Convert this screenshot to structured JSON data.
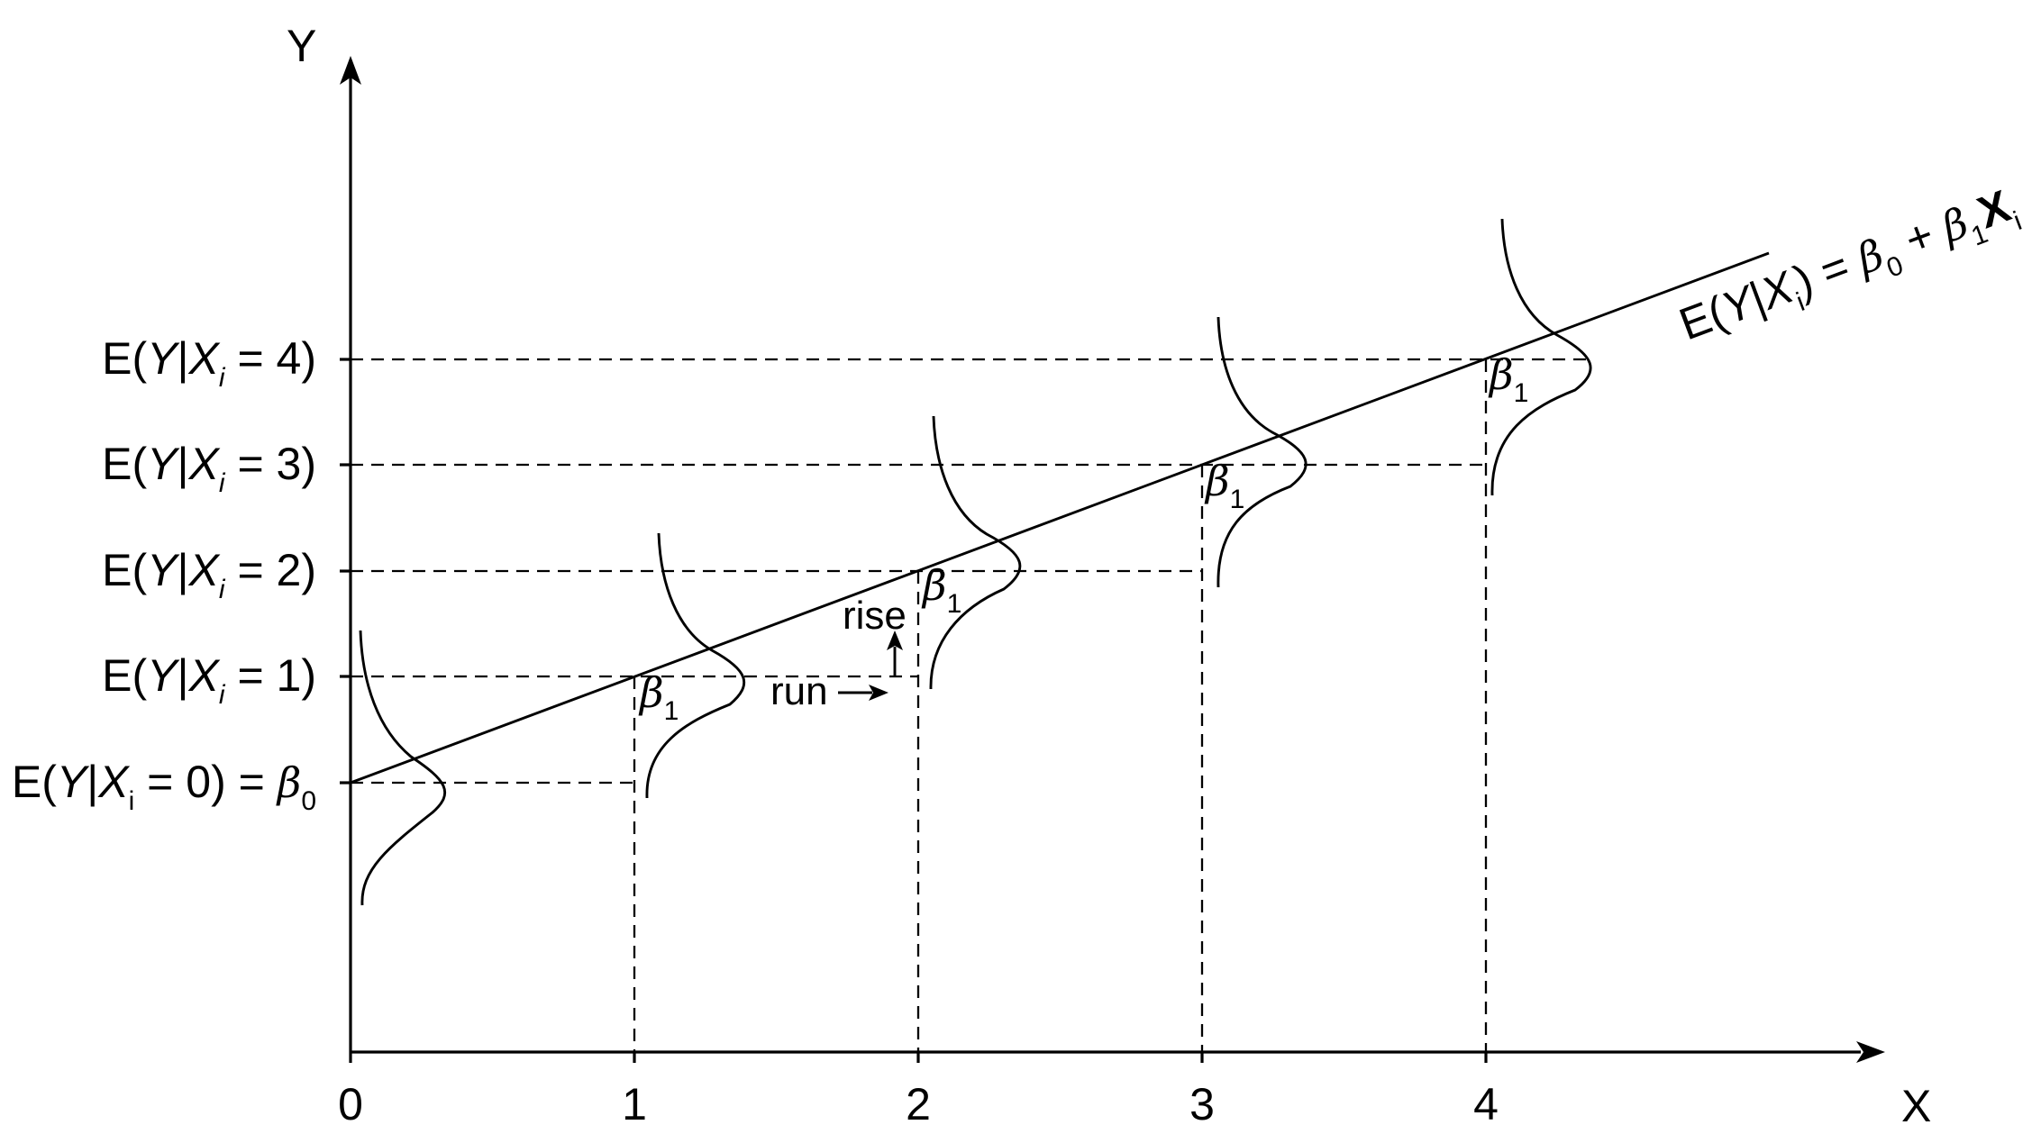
{
  "axes": {
    "y_label": "Y",
    "x_label": "X",
    "x_ticks": [
      "0",
      "1",
      "2",
      "3",
      "4"
    ]
  },
  "y_levels": [
    {
      "prefix": "E(",
      "var_y": "Y",
      "bar": "|",
      "var_x": "X",
      "sub": "i",
      "value": " = 0)",
      "tail": " = ",
      "tail_sym": "β",
      "tail_sub": "0"
    },
    {
      "prefix": "E(",
      "var_y": "Y",
      "bar": "|",
      "var_x": "X",
      "sub": "i",
      "value": " = 1)"
    },
    {
      "prefix": "E(",
      "var_y": "Y",
      "bar": "|",
      "var_x": "X",
      "sub": "i",
      "value": " = 2)"
    },
    {
      "prefix": "E(",
      "var_y": "Y",
      "bar": "|",
      "var_x": "X",
      "sub": "i",
      "value": " = 3)"
    },
    {
      "prefix": "E(",
      "var_y": "Y",
      "bar": "|",
      "var_x": "X",
      "sub": "i",
      "value": " = 4)"
    }
  ],
  "slope_labels": {
    "symbol": "β",
    "sub": "1"
  },
  "annotations": {
    "rise": "rise",
    "run": "run"
  },
  "regression_equation": {
    "lhs_open": "E(",
    "lhs_y": "Y",
    "lhs_bar": "|",
    "lhs_x": "X",
    "lhs_sub": "i",
    "lhs_close": ")",
    "equals": " = ",
    "beta0": "β",
    "beta0_sub": "0",
    "plus": " + ",
    "beta1": "β",
    "beta1_sub": "1",
    "rhs_x": "X",
    "rhs_sub": "i"
  }
}
